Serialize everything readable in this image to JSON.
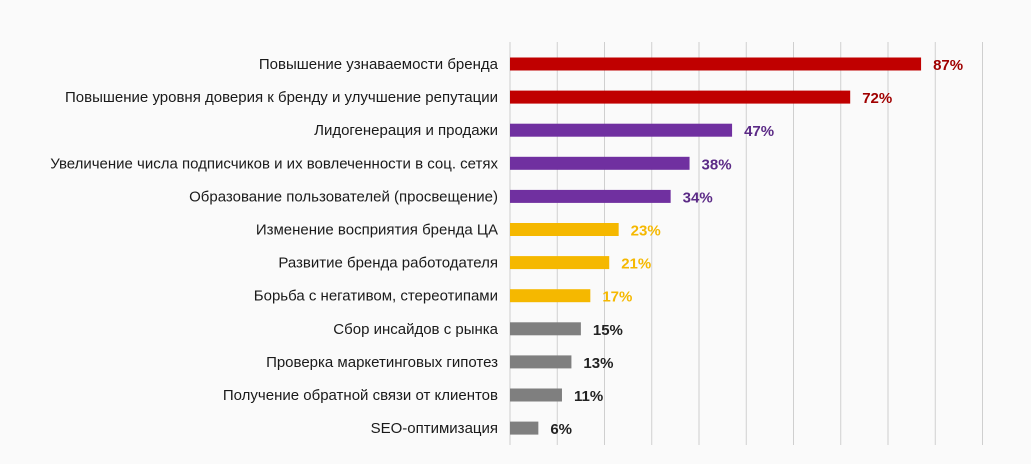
{
  "chart_data": {
    "type": "bar",
    "orientation": "horizontal",
    "categories": [
      "Повышение узнаваемости бренда",
      "Повышение уровня доверия к бренду и улучшение репутации",
      "Лидогенерация и продажи",
      "Увеличение числа подписчиков и их вовлеченности в соц. сетях",
      "Образование пользователей (просвещение)",
      "Изменение восприятия бренда ЦА",
      "Развитие бренда работодателя",
      "Борьба с негативом, стереотипами",
      "Сбор инсайдов с рынка",
      "Проверка маркетинговых гипотез",
      "Получение обратной связи от клиентов",
      "SEO-оптимизация"
    ],
    "values": [
      87,
      72,
      47,
      38,
      34,
      23,
      21,
      17,
      15,
      13,
      11,
      6
    ],
    "value_labels": [
      "87%",
      "72%",
      "47%",
      "38%",
      "34%",
      "23%",
      "21%",
      "17%",
      "15%",
      "13%",
      "11%",
      "6%"
    ],
    "bar_colors": [
      "#c00000",
      "#c00000",
      "#7030a0",
      "#7030a0",
      "#7030a0",
      "#f5b800",
      "#f5b800",
      "#f5b800",
      "#7f7f7f",
      "#7f7f7f",
      "#7f7f7f",
      "#7f7f7f"
    ],
    "label_colors": [
      "#a00000",
      "#a00000",
      "#5b2a86",
      "#5b2a86",
      "#5b2a86",
      "#f5b800",
      "#f5b800",
      "#f5b800",
      "#222222",
      "#222222",
      "#222222",
      "#222222"
    ],
    "xlim": [
      0,
      100
    ],
    "grid": true,
    "title": "",
    "xlabel": "",
    "ylabel": ""
  }
}
